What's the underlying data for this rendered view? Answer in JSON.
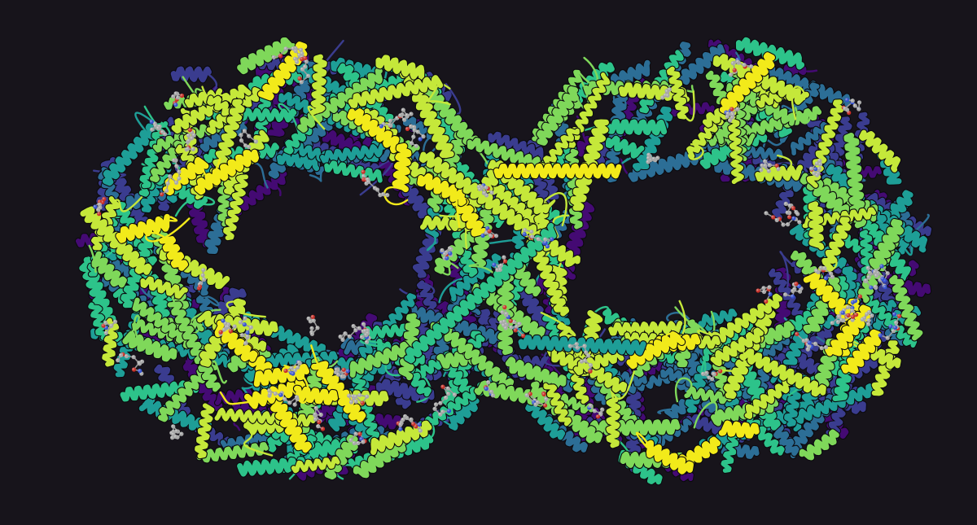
{
  "scene": {
    "subject": "protein-ribbon-structure",
    "background_color": "#17141b",
    "ribbon_palette": [
      "#440a73",
      "#3a3c8f",
      "#2c6e96",
      "#1e9e97",
      "#2dc38a",
      "#7fd85a",
      "#c5e83a",
      "#f2ea1a"
    ],
    "ligand_colors": {
      "carbon": "#b8b8b8",
      "oxygen": "#e0281e",
      "nitrogen": "#2f50e8"
    }
  }
}
